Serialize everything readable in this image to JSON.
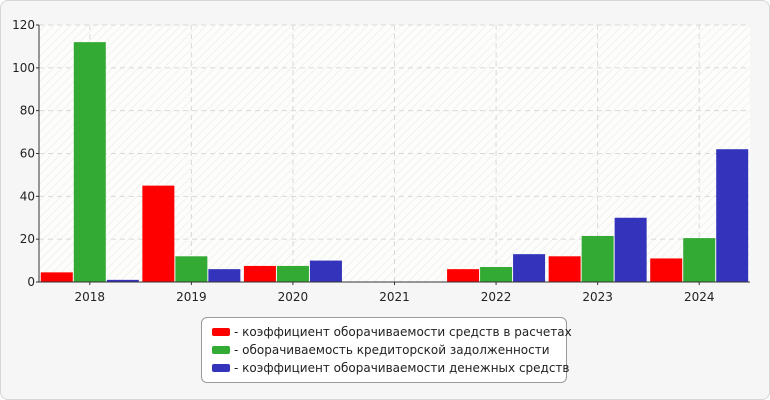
{
  "chart_data": {
    "type": "bar",
    "categories": [
      "2018",
      "2019",
      "2020",
      "2021",
      "2022",
      "2023",
      "2024"
    ],
    "series": [
      {
        "name": "- коэффициент оборачиваемости средств в расчетах",
        "color": "#ff0000",
        "values": [
          4.5,
          45,
          7.5,
          0,
          6,
          12,
          11
        ]
      },
      {
        "name": "- оборачиваемость кредиторской задолженности",
        "color": "#33aa33",
        "values": [
          112,
          12,
          7.5,
          0,
          7,
          21.5,
          20.5
        ]
      },
      {
        "name": "- коэффициент оборачиваемости денежных средств",
        "color": "#3333bb",
        "values": [
          1,
          6,
          10,
          0,
          13,
          30,
          62
        ]
      }
    ],
    "y_ticks": [
      "0",
      "20",
      "40",
      "60",
      "80",
      "100",
      "120"
    ],
    "ylim": [
      0,
      120
    ],
    "grid": true,
    "legend_position": "bottom-center"
  }
}
